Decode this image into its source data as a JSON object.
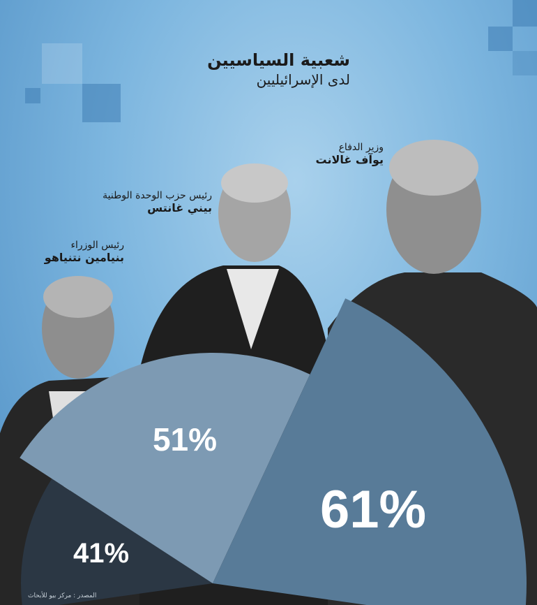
{
  "title": "شعبية السياسيين",
  "subtitle": "لدى الإسرائيليين",
  "people": [
    {
      "role": "رئيس الوزراء",
      "name": "بنيامين نتنياهو"
    },
    {
      "role": "رئيس حزب الوحدة الوطنية",
      "name": "بيني غانتس"
    },
    {
      "role": "وزير الدفاع",
      "name": "يوآف غالانت"
    }
  ],
  "source": "المصدر : مركز بيو للأبحاث",
  "chart_data": {
    "type": "pie",
    "categories": [
      "بنيامين نتنياهو",
      "بيني غانتس",
      "يوآف غالانت"
    ],
    "values": [
      41,
      51,
      61
    ],
    "labels": [
      "41%",
      "51%",
      "61%"
    ],
    "colors": [
      "#2b3744",
      "#7d9ab3",
      "#587b98"
    ]
  }
}
